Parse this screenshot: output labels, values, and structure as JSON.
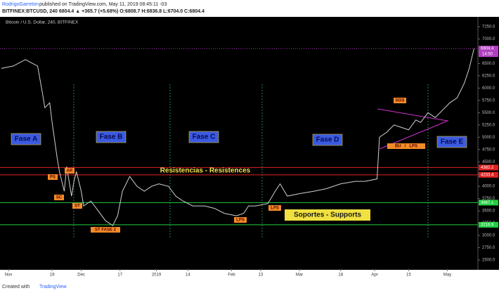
{
  "header": {
    "author": "RodrigoGarreton",
    "published": "published on TradingView.com, May 11, 2019 08:45:11 -03",
    "quote": "BITFINEX:BTCUSD, 240  6804.4 ▲ +365.7 (+5.68%)  O:6808.7  H:6836.8  L:6704.0  C:6804.4"
  },
  "footer": {
    "created": "Created with",
    "brand": "TradingView"
  },
  "chart_data": {
    "type": "line",
    "title": "Bitcoin / U.S. Dollar, 240, BITFINEX",
    "x": [
      -3,
      2,
      7,
      10,
      12,
      14,
      15,
      17,
      18,
      20,
      21,
      23,
      24,
      26,
      27,
      28,
      30,
      31,
      34,
      37,
      40,
      43,
      45,
      47,
      50,
      53,
      56,
      59,
      62,
      66,
      69,
      72,
      76,
      81,
      85,
      89,
      94,
      97,
      99,
      102,
      107,
      110,
      112,
      115,
      120,
      126,
      131,
      137,
      143,
      147,
      152,
      153,
      156,
      159,
      162,
      165,
      168,
      170,
      173,
      176,
      179,
      182,
      185,
      188,
      190,
      192
    ],
    "series": [
      {
        "name": "BTCUSD",
        "color": "#d0d0d0",
        "values": [
          6400,
          6450,
          6580,
          6500,
          6450,
          5900,
          5600,
          5700,
          5300,
          4600,
          4300,
          3900,
          4400,
          3800,
          4100,
          4300,
          3900,
          3600,
          3700,
          3500,
          3300,
          3200,
          3400,
          3900,
          4200,
          4000,
          3900,
          4000,
          4050,
          4000,
          3800,
          3700,
          3600,
          3600,
          3550,
          3450,
          3400,
          3450,
          3600,
          3600,
          3650,
          3900,
          4050,
          3800,
          3850,
          3900,
          3950,
          4050,
          4100,
          4100,
          4150,
          5000,
          5100,
          5250,
          5200,
          5150,
          5350,
          5300,
          5500,
          5400,
          5550,
          5700,
          5800,
          6100,
          6400,
          6804.4
        ]
      }
    ],
    "xlim": [
      -3.5,
      193.6
    ],
    "xticks": [
      {
        "value": 0,
        "label": "Nov"
      },
      {
        "value": 18,
        "label": "19"
      },
      {
        "value": 30,
        "label": "Dec"
      },
      {
        "value": 46,
        "label": "17"
      },
      {
        "value": 61,
        "label": "2019"
      },
      {
        "value": 74,
        "label": "14"
      },
      {
        "value": 92,
        "label": "Feb"
      },
      {
        "value": 104,
        "label": "13"
      },
      {
        "value": 120,
        "label": "Mar"
      },
      {
        "value": 137,
        "label": "18"
      },
      {
        "value": 151,
        "label": "Apr"
      },
      {
        "value": 165,
        "label": "15"
      },
      {
        "value": 181,
        "label": "May"
      }
    ],
    "ylim": [
      2314,
      7450
    ],
    "yticks": [
      {
        "value": 2500,
        "label": "2500.0"
      },
      {
        "value": 2750,
        "label": "2750.0"
      },
      {
        "value": 3000,
        "label": "3000.0"
      },
      {
        "value": 3250,
        "label": "3250.0"
      },
      {
        "value": 3500,
        "label": "3500.0"
      },
      {
        "value": 3750,
        "label": "3750.0"
      },
      {
        "value": 4000,
        "label": "4000.0"
      },
      {
        "value": 4250,
        "label": "4250.0"
      },
      {
        "value": 4500,
        "label": "4500.0"
      },
      {
        "value": 4750,
        "label": "4750.0"
      },
      {
        "value": 5000,
        "label": "5000.0"
      },
      {
        "value": 5250,
        "label": "5250.0"
      },
      {
        "value": 5500,
        "label": "5500.0"
      },
      {
        "value": 5750,
        "label": "5750.0"
      },
      {
        "value": 6000,
        "label": "6000.0"
      },
      {
        "value": 6250,
        "label": "6250.0"
      },
      {
        "value": 6500,
        "label": "6500.0"
      },
      {
        "value": 6750,
        "label": "6750.0"
      },
      {
        "value": 7000,
        "label": "7000.0"
      },
      {
        "value": 7250,
        "label": "7250.0"
      }
    ],
    "levels": [
      {
        "value": 4382.2,
        "color": "#e02020"
      },
      {
        "value": 4233.4,
        "color": "#e02020"
      },
      {
        "value": 3667.1,
        "color": "#20d040"
      },
      {
        "value": 3216.9,
        "color": "#20d040"
      }
    ],
    "last_price": {
      "value": 6804.4,
      "time": "14:50",
      "color": "#b040c0"
    },
    "phases": [
      "Fase A",
      "Fase B",
      "Fase C",
      "Fase D",
      "Fase E"
    ],
    "zones": [
      "Resistencias - Resistences",
      "Soportes - Supports"
    ],
    "tags": [
      "PS",
      "AR",
      "SC",
      "ST",
      "ST FASE 2",
      "LPS",
      "LPS",
      "SOS",
      "BU   /   LPS"
    ]
  }
}
